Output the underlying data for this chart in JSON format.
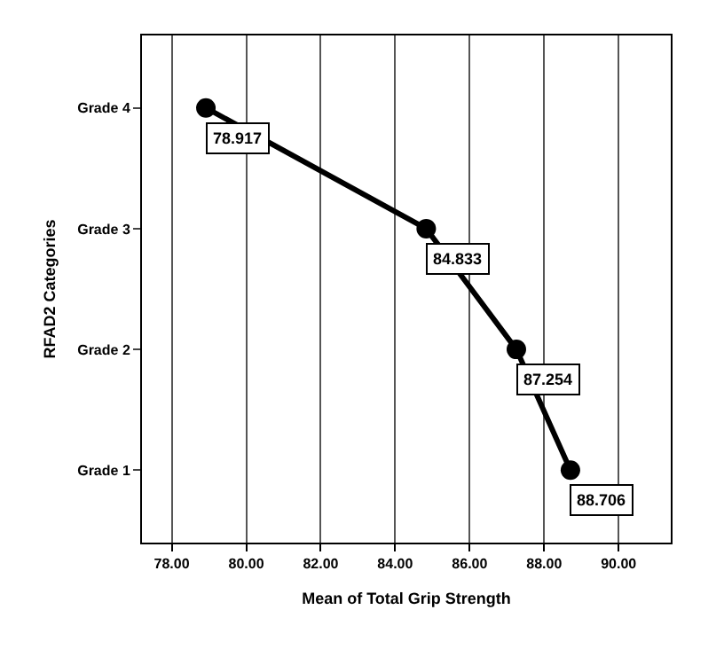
{
  "chart_data": {
    "type": "line",
    "orientation": "horizontal",
    "xlabel": "Mean of Total Grip Strength",
    "ylabel": "RFAD2 Categories",
    "categories": [
      "Grade 4",
      "Grade 3",
      "Grade 2",
      "Grade 1"
    ],
    "values": [
      78.917,
      84.833,
      87.254,
      88.706
    ],
    "color": "#000000",
    "marker": "circle",
    "line_style": "solid",
    "data_labels": true,
    "grid": "x",
    "xlim": [
      77.2,
      91.4
    ],
    "xticks": [
      {
        "value": 78,
        "label": "78.00"
      },
      {
        "value": 80,
        "label": "80.00"
      },
      {
        "value": 82,
        "label": "82.00"
      },
      {
        "value": 84,
        "label": "84.00"
      },
      {
        "value": 86,
        "label": "86.00"
      },
      {
        "value": 88,
        "label": "88.00"
      },
      {
        "value": 90,
        "label": "90.00"
      }
    ]
  }
}
